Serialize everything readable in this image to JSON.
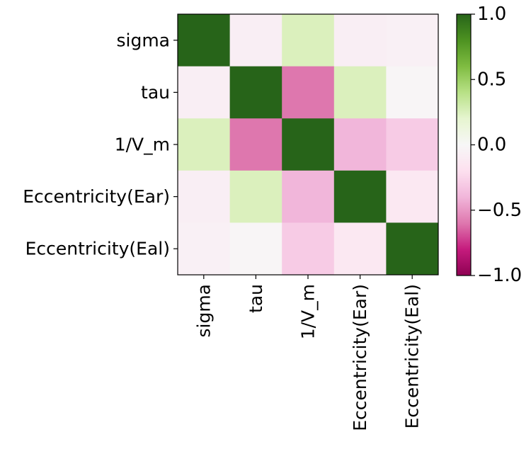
{
  "chart_data": {
    "type": "heatmap",
    "rows": [
      "sigma",
      "tau",
      "1/V_m",
      "Eccentricity(Ear)",
      "Eccentricity(Eal)"
    ],
    "columns": [
      "sigma",
      "tau",
      "1/V_m",
      "Eccentricity(Ear)",
      "Eccentricity(Eal)"
    ],
    "values": [
      [
        1.0,
        -0.08,
        0.25,
        -0.08,
        -0.06
      ],
      [
        -0.08,
        1.0,
        -0.6,
        0.25,
        -0.02
      ],
      [
        0.25,
        -0.6,
        1.0,
        -0.4,
        -0.3
      ],
      [
        -0.08,
        0.25,
        -0.4,
        1.0,
        -0.13
      ],
      [
        -0.06,
        -0.02,
        -0.3,
        -0.13,
        1.0
      ]
    ],
    "colormap": "PiYG",
    "vmin": -1.0,
    "vmax": 1.0,
    "colorbar": {
      "ticks": [
        1.0,
        0.5,
        0.0,
        -0.5,
        -1.0
      ],
      "tick_labels": [
        "1.0",
        "0.5",
        "0.0",
        "−0.5",
        "−1.0"
      ]
    },
    "grid": false
  }
}
